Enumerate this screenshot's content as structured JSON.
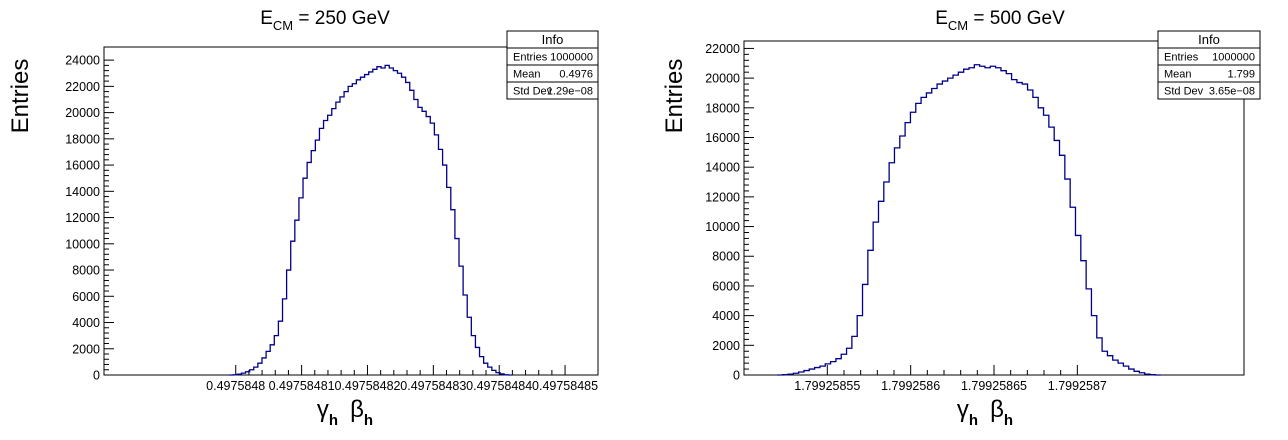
{
  "chart_data": [
    {
      "type": "histogram",
      "title": "E",
      "title_sub": "CM",
      "title_rest": " = 250 GeV",
      "xlabel_parts": [
        "γ",
        "h",
        "β",
        "h"
      ],
      "ylabel": "Entries",
      "ylim": [
        0,
        25000
      ],
      "yticks": [
        "0",
        "2000",
        "4000",
        "6000",
        "8000",
        "10000",
        "12000",
        "14000",
        "16000",
        "18000",
        "20000",
        "22000",
        "24000"
      ],
      "xlim": [
        0.49758478,
        0.497584855
      ],
      "xticks": [
        {
          "v": 0.4975848,
          "label": "0.4975848"
        },
        {
          "v": 0.49758481,
          "label": "0.49758481"
        },
        {
          "v": 0.49758482,
          "label": "0.49758482"
        },
        {
          "v": 0.49758483,
          "label": "0.49758483"
        },
        {
          "v": 0.49758484,
          "label": "0.49758484"
        },
        {
          "v": 0.49758485,
          "label": "0.49758485"
        }
      ],
      "bin_edges": [
        0.497584799,
        0.497584842
      ],
      "values": [
        0,
        20,
        60,
        140,
        250,
        400,
        600,
        900,
        1300,
        1800,
        2300,
        3000,
        4100,
        5800,
        8000,
        10200,
        11800,
        13500,
        15000,
        16200,
        17100,
        17900,
        18800,
        19400,
        19800,
        20300,
        20800,
        21200,
        21600,
        22000,
        22200,
        22500,
        22700,
        22900,
        23100,
        23300,
        23500,
        23400,
        23600,
        23400,
        23200,
        23000,
        22700,
        22300,
        21700,
        21000,
        20400,
        20100,
        19700,
        19200,
        18300,
        17200,
        16000,
        14300,
        12600,
        10400,
        8300,
        6100,
        4400,
        3000,
        2100,
        1400,
        900,
        600,
        350,
        180,
        80,
        20,
        0
      ],
      "stats": {
        "header": "Info",
        "rows": [
          {
            "label": "Entries",
            "value": "1000000"
          },
          {
            "label": "Mean",
            "value": "0.4976"
          },
          {
            "label": "Std Dev",
            "value": "1.29e−08"
          }
        ]
      },
      "color": "#00008b"
    },
    {
      "type": "histogram",
      "title": "E",
      "title_sub": "CM",
      "title_rest": " = 500 GeV",
      "xlabel_parts": [
        "γ",
        "h",
        "β",
        "h"
      ],
      "ylabel": "Entries",
      "ylim": [
        0,
        22500
      ],
      "yticks": [
        "0",
        "2000",
        "4000",
        "6000",
        "8000",
        "10000",
        "12000",
        "14000",
        "16000",
        "18000",
        "20000",
        "22000"
      ],
      "xlim": [
        1.7992585,
        1.7992588
      ],
      "xticks": [
        {
          "v": 1.79925855,
          "label": "1.79925855"
        },
        {
          "v": 1.7992586,
          "label": "1.7992586"
        },
        {
          "v": 1.79925865,
          "label": "1.79925865"
        },
        {
          "v": 1.7992587,
          "label": "1.7992587"
        }
      ],
      "bin_edges": [
        1.79925852,
        1.79925875
      ],
      "values": [
        0,
        20,
        60,
        120,
        200,
        300,
        400,
        500,
        600,
        750,
        900,
        1100,
        1400,
        1800,
        2600,
        4000,
        6100,
        8400,
        10300,
        11700,
        13000,
        14300,
        15300,
        16100,
        17000,
        17700,
        18300,
        18700,
        19000,
        19300,
        19600,
        19800,
        20000,
        20200,
        20400,
        20600,
        20700,
        20900,
        20800,
        20700,
        20800,
        20700,
        20500,
        20300,
        19900,
        19700,
        19600,
        19200,
        18700,
        18000,
        17500,
        16700,
        15800,
        14800,
        13200,
        11300,
        9400,
        7700,
        5800,
        4000,
        2500,
        1600,
        1300,
        1000,
        800,
        600,
        400,
        250,
        150,
        60,
        20,
        0
      ],
      "stats": {
        "header": "Info",
        "rows": [
          {
            "label": "Entries",
            "value": "1000000"
          },
          {
            "label": "Mean",
            "value": "1.799"
          },
          {
            "label": "Std Dev",
            "value": "3.65e−08"
          }
        ]
      },
      "color": "#00008b"
    }
  ]
}
